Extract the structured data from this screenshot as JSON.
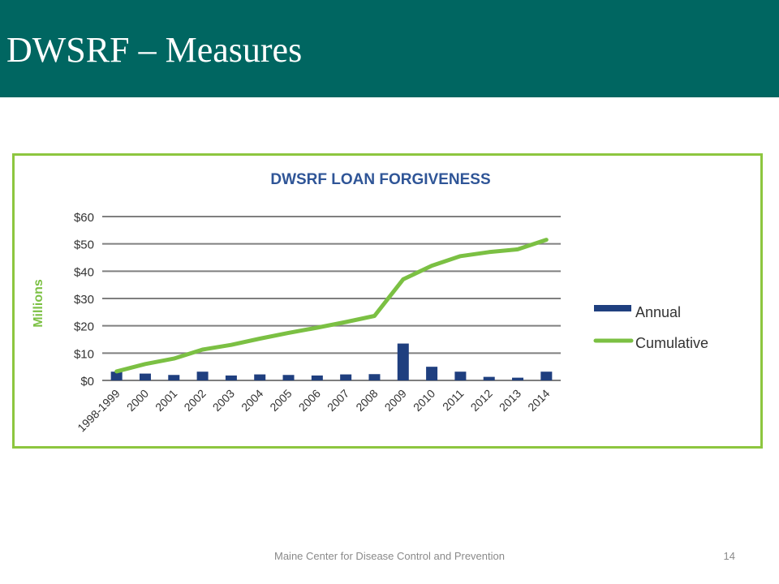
{
  "slide": {
    "title": "DWSRF – Measures",
    "footer": "Maine Center for Disease Control and Prevention",
    "page_number": "14"
  },
  "colors": {
    "header_bg": "#006661",
    "frame_border": "#8dc63f",
    "title_blue": "#2f5597",
    "annual_bar": "#1f3f7f",
    "cumulative_line": "#7bc043",
    "gridline": "#7f7f7f"
  },
  "chart_data": {
    "type": "bar",
    "title": "DWSRF LOAN FORGIVENESS",
    "xlabel": "",
    "ylabel": "Millions",
    "ylim": [
      0,
      60
    ],
    "yticks": [
      0,
      10,
      20,
      30,
      40,
      50,
      60
    ],
    "ytick_labels": [
      "$0",
      "$10",
      "$20",
      "$30",
      "$40",
      "$50",
      "$60"
    ],
    "grid": true,
    "legend_position": "right",
    "categories": [
      "1998-1999",
      "2000",
      "2001",
      "2002",
      "2003",
      "2004",
      "2005",
      "2006",
      "2007",
      "2008",
      "2009",
      "2010",
      "2011",
      "2012",
      "2013",
      "2014"
    ],
    "series": [
      {
        "name": "Annual",
        "type": "bar",
        "color": "#1f3f7f",
        "values": [
          3.2,
          2.5,
          2,
          3.2,
          1.8,
          2.2,
          2,
          1.8,
          2.2,
          2.3,
          13.5,
          5,
          3.2,
          1.3,
          1,
          3.2
        ]
      },
      {
        "name": "Cumulative",
        "type": "line",
        "color": "#7bc043",
        "values": [
          3.3,
          6,
          8,
          11.3,
          13,
          15.3,
          17.4,
          19.3,
          21.4,
          23.6,
          37,
          42,
          45.5,
          47,
          48,
          51.5
        ]
      }
    ]
  }
}
